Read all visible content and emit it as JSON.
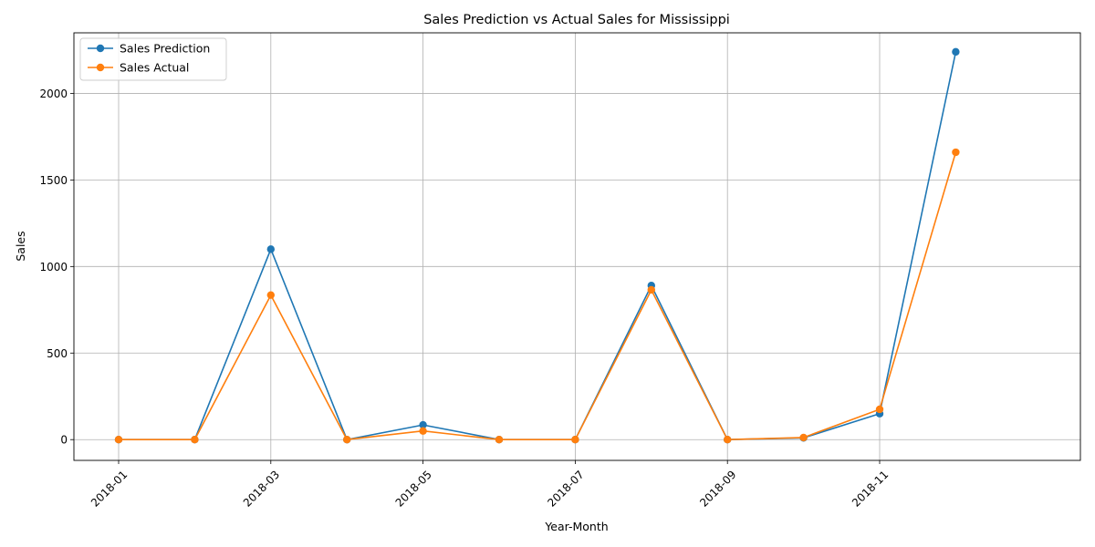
{
  "chart_data": {
    "type": "line",
    "title": "Sales Prediction vs Actual Sales for Mississippi",
    "xlabel": "Year-Month",
    "ylabel": "Sales",
    "x": [
      "2018-01",
      "2018-02",
      "2018-03",
      "2018-04",
      "2018-05",
      "2018-06",
      "2018-07",
      "2018-08",
      "2018-09",
      "2018-10",
      "2018-11",
      "2018-12"
    ],
    "x_ticks": [
      "2018-01",
      "2018-03",
      "2018-05",
      "2018-07",
      "2018-09",
      "2018-11"
    ],
    "y_ticks": [
      0,
      500,
      1000,
      1500,
      2000
    ],
    "ylim": [
      -120,
      2350
    ],
    "grid": true,
    "legend_position": "upper-left",
    "series": [
      {
        "name": "Sales Prediction",
        "color": "#1f77b4",
        "marker": "circle",
        "values": [
          0,
          0,
          1100,
          0,
          85,
          0,
          0,
          890,
          0,
          10,
          150,
          2240
        ]
      },
      {
        "name": "Sales Actual",
        "color": "#ff7f0e",
        "marker": "circle",
        "values": [
          0,
          0,
          835,
          0,
          50,
          0,
          0,
          865,
          0,
          12,
          175,
          1660
        ]
      }
    ]
  }
}
